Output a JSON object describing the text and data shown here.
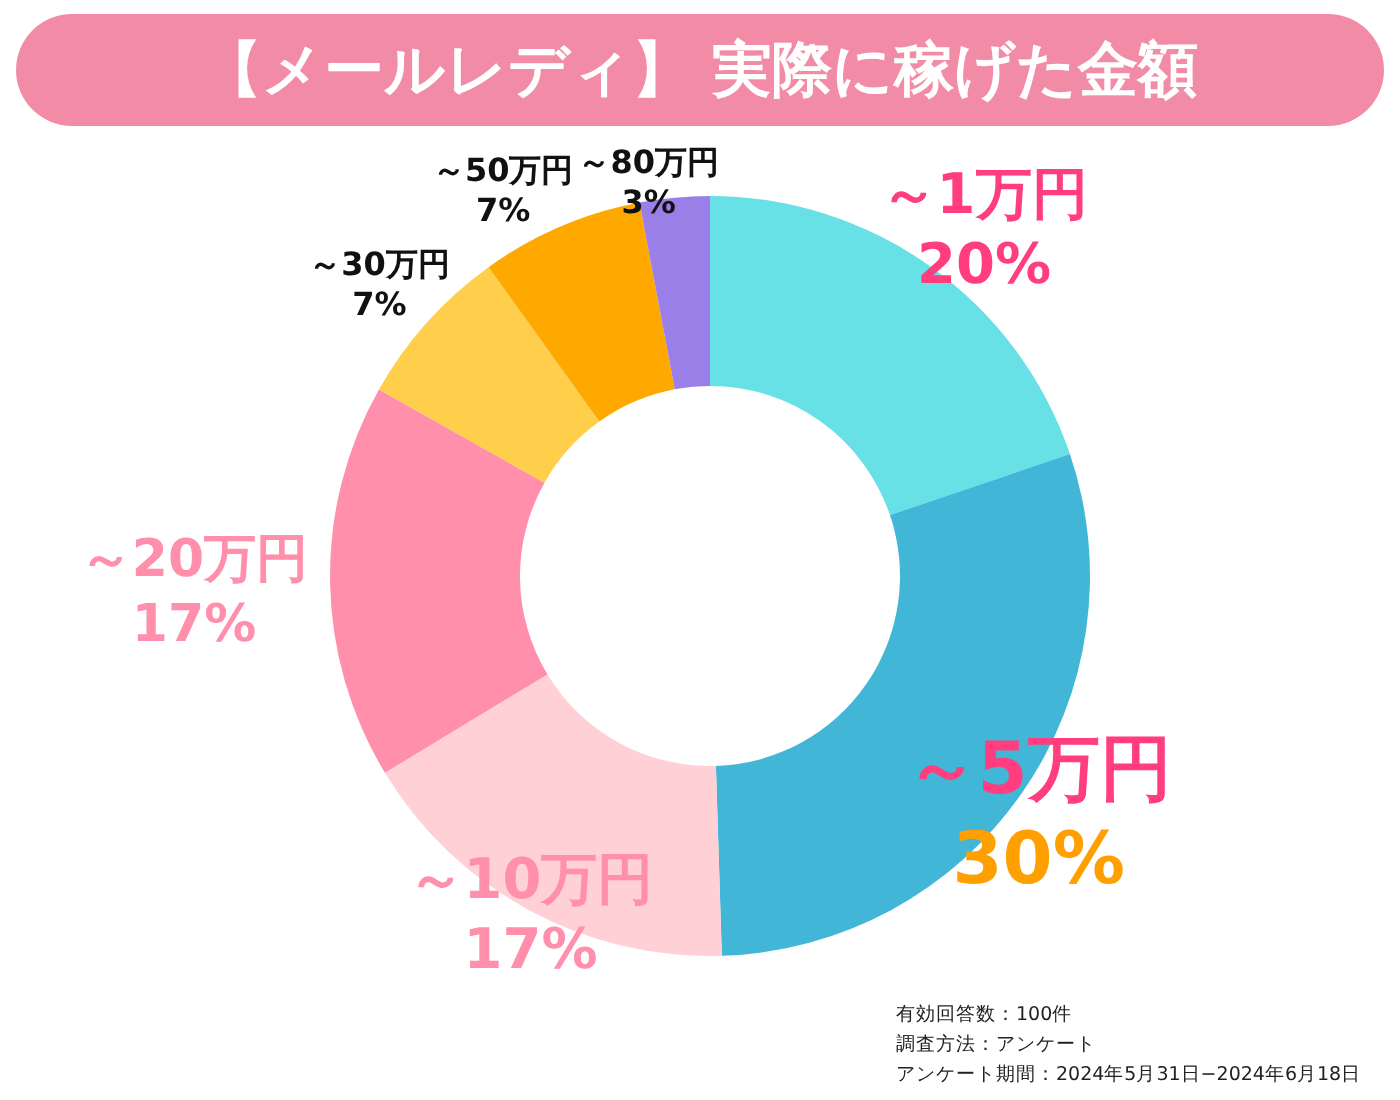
{
  "chart_data": {
    "type": "donut",
    "title": "【メールレディ】 実際に稼げた金額",
    "categories": [
      "～1万円",
      "～5万円",
      "～10万円",
      "～20万円",
      "～30万円",
      "～50万円",
      "～80万円"
    ],
    "values": [
      20,
      30,
      17,
      17,
      7,
      7,
      3
    ],
    "value_labels": [
      "20%",
      "30%",
      "17%",
      "17%",
      "7%",
      "7%",
      "3%"
    ],
    "colors": [
      "#67e0e6",
      "#41b6d6",
      "#ffd0d5",
      "#ff8fab",
      "#ffce4a",
      "#ffa800",
      "#9b7fe8"
    ],
    "legend": false,
    "annotations": [
      "有効回答数：100件",
      "調査方法：アンケート",
      "アンケート期間：2024年5月31日−2024年6月18日"
    ]
  }
}
